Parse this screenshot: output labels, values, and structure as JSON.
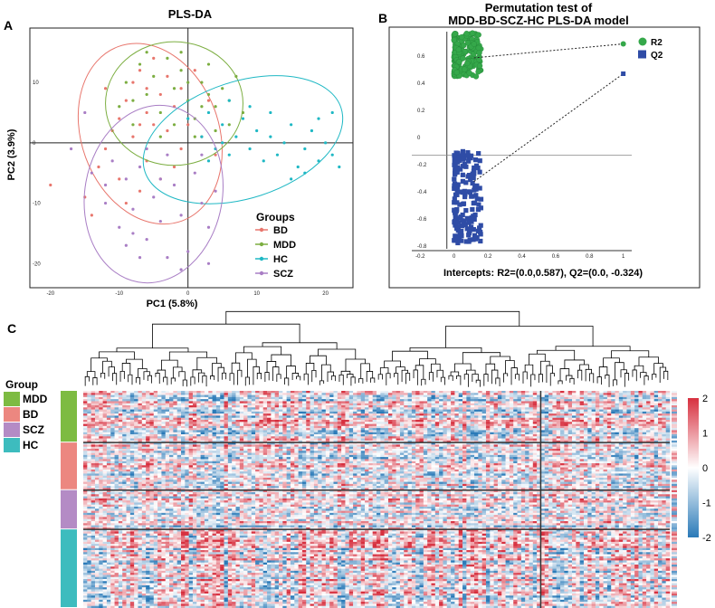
{
  "panels": {
    "a": "A",
    "b": "B",
    "c": "C"
  },
  "chart_data": [
    {
      "type": "scatter",
      "title": "PLS-DA",
      "xlabel": "PC1 (5.8%)",
      "ylabel": "PC2 (3.9%)",
      "xlim": [
        -23,
        24
      ],
      "ylim": [
        -24,
        19
      ],
      "xticks": [
        -20,
        -10,
        0,
        10,
        20
      ],
      "yticks": [
        -20,
        -10,
        0,
        10
      ],
      "legend_title": "Groups",
      "legend_position": "bottom-right",
      "series": [
        {
          "name": "BD",
          "color": "#e8766d",
          "ellipse": {
            "cx": -5.5,
            "cy": 1.5,
            "rx": 10,
            "ry": 13.5,
            "angle": -20
          },
          "points": [
            [
              -20,
              -7
            ],
            [
              -13,
              -4
            ],
            [
              -12,
              -1
            ],
            [
              -11,
              2
            ],
            [
              -10,
              4
            ],
            [
              -9,
              7
            ],
            [
              -8,
              10
            ],
            [
              -7,
              12
            ],
            [
              -7,
              -8
            ],
            [
              -6,
              5
            ],
            [
              -6,
              -3
            ],
            [
              -5,
              14
            ],
            [
              -5,
              3
            ],
            [
              -4,
              8
            ],
            [
              -4,
              -6
            ],
            [
              -3,
              11
            ],
            [
              -3,
              2
            ],
            [
              -2,
              6
            ],
            [
              -2,
              -4
            ],
            [
              -1,
              9
            ],
            [
              0,
              3
            ],
            [
              1,
              12
            ],
            [
              2,
              1
            ],
            [
              3,
              7
            ],
            [
              -15,
              -9
            ],
            [
              -14,
              -12
            ],
            [
              -9,
              -10
            ],
            [
              -8,
              1
            ],
            [
              -10,
              -6
            ],
            [
              -6,
              9
            ],
            [
              -12,
              9
            ],
            [
              -1,
              -1
            ],
            [
              4,
              -2
            ],
            [
              -7,
              3
            ]
          ]
        },
        {
          "name": "MDD",
          "color": "#7cae41",
          "ellipse": {
            "cx": -2,
            "cy": 6.5,
            "rx": 10,
            "ry": 9,
            "angle": 0
          },
          "points": [
            [
              -10,
              6
            ],
            [
              -9,
              10
            ],
            [
              -8,
              3
            ],
            [
              -7,
              13
            ],
            [
              -6,
              8
            ],
            [
              -5,
              11
            ],
            [
              -4,
              5
            ],
            [
              -3,
              14
            ],
            [
              -2,
              9
            ],
            [
              -1,
              12
            ],
            [
              0,
              7
            ],
            [
              1,
              4
            ],
            [
              2,
              10
            ],
            [
              3,
              13
            ],
            [
              4,
              6
            ],
            [
              5,
              9
            ],
            [
              6,
              3
            ],
            [
              7,
              11
            ],
            [
              -4,
              1
            ],
            [
              -2,
              3
            ],
            [
              0,
              10
            ],
            [
              2,
              6
            ],
            [
              4,
              2
            ],
            [
              6,
              7
            ],
            [
              -6,
              15
            ],
            [
              -1,
              15
            ],
            [
              3,
              8
            ],
            [
              -8,
              7
            ],
            [
              1,
              1
            ],
            [
              8,
              5
            ]
          ]
        },
        {
          "name": "HC",
          "color": "#1fb8c4",
          "ellipse": {
            "cx": 8,
            "cy": 0.5,
            "rx": 15,
            "ry": 8.5,
            "angle": -18
          },
          "points": [
            [
              0,
              4
            ],
            [
              2,
              1
            ],
            [
              3,
              5
            ],
            [
              4,
              -1
            ],
            [
              5,
              3
            ],
            [
              6,
              -2
            ],
            [
              7,
              1
            ],
            [
              8,
              4
            ],
            [
              9,
              -1
            ],
            [
              10,
              2
            ],
            [
              11,
              -3
            ],
            [
              12,
              1
            ],
            [
              13,
              -2
            ],
            [
              14,
              0
            ],
            [
              15,
              3
            ],
            [
              16,
              -4
            ],
            [
              17,
              -1
            ],
            [
              18,
              2
            ],
            [
              19,
              -3
            ],
            [
              20,
              0
            ],
            [
              21,
              -2
            ],
            [
              22,
              -4
            ],
            [
              19,
              4
            ],
            [
              21,
              5
            ],
            [
              3,
              -3
            ],
            [
              6,
              7
            ],
            [
              9,
              6
            ],
            [
              12,
              5
            ],
            [
              15,
              -6
            ],
            [
              17,
              -5
            ],
            [
              5,
              0
            ]
          ]
        },
        {
          "name": "SCZ",
          "color": "#a97ec5",
          "ellipse": {
            "cx": -5,
            "cy": -8.5,
            "rx": 10,
            "ry": 13,
            "angle": 10
          },
          "points": [
            [
              -17,
              -1
            ],
            [
              -14,
              -5
            ],
            [
              -12,
              -10
            ],
            [
              -11,
              -3
            ],
            [
              -10,
              -14
            ],
            [
              -9,
              -6
            ],
            [
              -8,
              -11
            ],
            [
              -7,
              -4
            ],
            [
              -6,
              -16
            ],
            [
              -5,
              -9
            ],
            [
              -4,
              -13
            ],
            [
              -3,
              -2
            ],
            [
              -2,
              -7
            ],
            [
              -1,
              -12
            ],
            [
              0,
              -18
            ],
            [
              1,
              -5
            ],
            [
              2,
              -10
            ],
            [
              3,
              -14
            ],
            [
              4,
              -8
            ],
            [
              -9,
              -17
            ],
            [
              -6,
              -1
            ],
            [
              -3,
              -19
            ],
            [
              -1,
              -21
            ],
            [
              -12,
              -7
            ],
            [
              -8,
              -15
            ],
            [
              2,
              -2
            ],
            [
              -15,
              5
            ],
            [
              -4,
              -6
            ],
            [
              -7,
              -19
            ],
            [
              3,
              -20
            ]
          ]
        }
      ]
    },
    {
      "type": "scatter",
      "title": "Permutation test of",
      "subtitle": "MDD-BD-SCZ-HC PLS-DA model",
      "xlim": [
        -0.25,
        1.05
      ],
      "ylim": [
        -0.82,
        0.78
      ],
      "xticks": [
        -0.2,
        0,
        0.2,
        0.4,
        0.6,
        0.8,
        1
      ],
      "yticks": [
        0.6,
        0.4,
        0.2,
        0,
        -0.2,
        -0.4,
        -0.6,
        -0.8
      ],
      "hline": -0.13,
      "legend_position": "top-right",
      "annotation": "Intercepts: R2=(0.0,0.587), Q2=(0.0, -0.324)",
      "series": [
        {
          "name": "R2",
          "color": "#35a84a",
          "marker": "circle",
          "original": [
            1,
            0.69
          ],
          "intercept": [
            0,
            0.587
          ],
          "cluster_x": [
            0,
            0.16
          ],
          "cluster_y": [
            0.45,
            0.77
          ]
        },
        {
          "name": "Q2",
          "color": "#2f4ca6",
          "marker": "square",
          "original": [
            1,
            0.47
          ],
          "intercept": [
            0,
            -0.324
          ],
          "cluster_x": [
            0,
            0.16
          ],
          "cluster_y": [
            -0.78,
            -0.1
          ]
        }
      ]
    },
    {
      "type": "heatmap",
      "color_scale": {
        "min": -2,
        "max": 2,
        "ticks": [
          2,
          1,
          0,
          -1,
          -2
        ],
        "low": "#2a7ab8",
        "mid": "#ffffff",
        "high": "#d7303f"
      },
      "row_group_title": "Group",
      "row_groups": [
        {
          "name": "MDD",
          "color": "#7dbb42",
          "rows": 25
        },
        {
          "name": "BD",
          "color": "#ec8780",
          "rows": 23
        },
        {
          "name": "SCZ",
          "color": "#b48bc5",
          "rows": 19
        },
        {
          "name": "HC",
          "color": "#3dbcbe",
          "rows": 38
        }
      ],
      "col_split_fraction": 0.78
    }
  ]
}
